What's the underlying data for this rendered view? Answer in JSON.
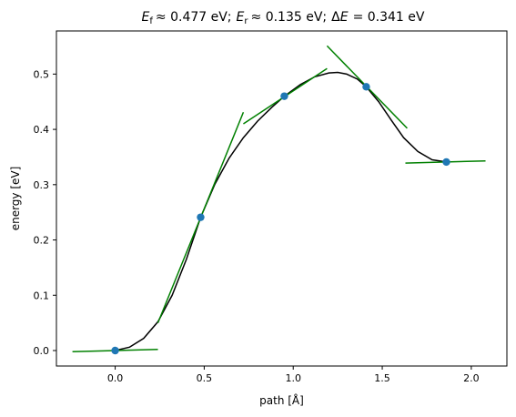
{
  "chart_data": {
    "type": "line",
    "title": "E_f ≈ 0.477 eV; E_r ≈ 0.135 eV; ΔE = 0.341 eV",
    "title_parts": {
      "ef_symbol": "E",
      "ef_sub": "f",
      "ef_value": "≈ 0.477 eV;",
      "er_symbol": "E",
      "er_sub": "r",
      "er_value": "≈ 0.135 eV;",
      "de_prefix": "Δ",
      "de_symbol": "E",
      "de_value": "= 0.341 eV"
    },
    "xlabel": "path [Å]",
    "ylabel": "energy [eV]",
    "xlim": [
      -0.33,
      2.2
    ],
    "ylim": [
      -0.028,
      0.578
    ],
    "xticks": [
      0.0,
      0.5,
      1.0,
      1.5,
      2.0
    ],
    "xtick_labels": [
      "0.0",
      "0.5",
      "1.0",
      "1.5",
      "2.0"
    ],
    "yticks": [
      0.0,
      0.1,
      0.2,
      0.3,
      0.4,
      0.5
    ],
    "ytick_labels": [
      "0.0",
      "0.1",
      "0.2",
      "0.3",
      "0.4",
      "0.5"
    ],
    "grid": false,
    "colors": {
      "points": "#1f77b4",
      "curve": "#000000",
      "tangents": "#008000"
    },
    "points": [
      {
        "x": 0.0,
        "y": 0.0
      },
      {
        "x": 0.48,
        "y": 0.241
      },
      {
        "x": 0.95,
        "y": 0.46
      },
      {
        "x": 1.41,
        "y": 0.477
      },
      {
        "x": 1.86,
        "y": 0.341
      }
    ],
    "curve": [
      {
        "x": 0.0,
        "y": 0.0
      },
      {
        "x": 0.08,
        "y": 0.006
      },
      {
        "x": 0.16,
        "y": 0.022
      },
      {
        "x": 0.24,
        "y": 0.052
      },
      {
        "x": 0.32,
        "y": 0.1
      },
      {
        "x": 0.4,
        "y": 0.165
      },
      {
        "x": 0.48,
        "y": 0.241
      },
      {
        "x": 0.56,
        "y": 0.301
      },
      {
        "x": 0.64,
        "y": 0.348
      },
      {
        "x": 0.72,
        "y": 0.385
      },
      {
        "x": 0.8,
        "y": 0.415
      },
      {
        "x": 0.88,
        "y": 0.44
      },
      {
        "x": 0.95,
        "y": 0.46
      },
      {
        "x": 1.04,
        "y": 0.481
      },
      {
        "x": 1.12,
        "y": 0.495
      },
      {
        "x": 1.2,
        "y": 0.502
      },
      {
        "x": 1.25,
        "y": 0.503
      },
      {
        "x": 1.3,
        "y": 0.5
      },
      {
        "x": 1.36,
        "y": 0.491
      },
      {
        "x": 1.41,
        "y": 0.477
      },
      {
        "x": 1.48,
        "y": 0.45
      },
      {
        "x": 1.55,
        "y": 0.417
      },
      {
        "x": 1.62,
        "y": 0.385
      },
      {
        "x": 1.7,
        "y": 0.36
      },
      {
        "x": 1.78,
        "y": 0.345
      },
      {
        "x": 1.86,
        "y": 0.341
      }
    ],
    "tangents": [
      {
        "x1": -0.24,
        "y1": -0.002,
        "x2": 0.24,
        "y2": 0.002
      },
      {
        "x1": 0.24,
        "y1": 0.05,
        "x2": 0.72,
        "y2": 0.431
      },
      {
        "x1": 0.72,
        "y1": 0.41,
        "x2": 1.19,
        "y2": 0.51
      },
      {
        "x1": 1.19,
        "y1": 0.551,
        "x2": 1.64,
        "y2": 0.402
      },
      {
        "x1": 1.63,
        "y1": 0.339,
        "x2": 2.08,
        "y2": 0.343
      }
    ]
  }
}
